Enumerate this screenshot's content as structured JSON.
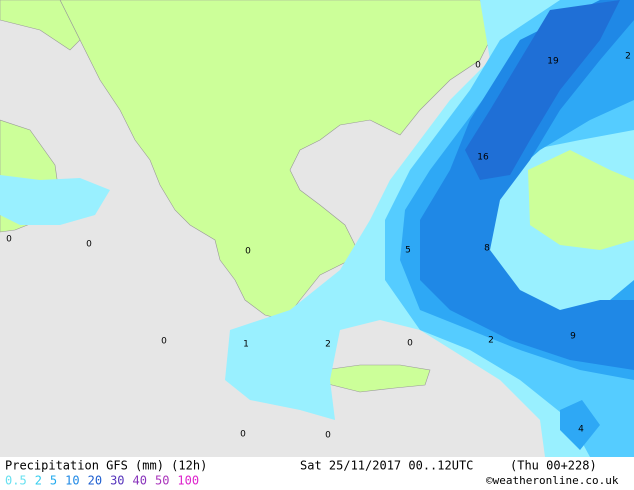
{
  "header": {
    "title": "Precipitation GFS (mm) (12h)",
    "date": "Sat 25/11/2017 00..12UTC",
    "run": "(Thu 00+228)"
  },
  "legend": [
    {
      "label": "0.5",
      "color": "#66e0f0"
    },
    {
      "label": "2",
      "color": "#33ccee"
    },
    {
      "label": "5",
      "color": "#22aaee"
    },
    {
      "label": "10",
      "color": "#1e88e5"
    },
    {
      "label": "20",
      "color": "#1e5fd0"
    },
    {
      "label": "30",
      "color": "#5533bb"
    },
    {
      "label": "40",
      "color": "#8833bb"
    },
    {
      "label": "50",
      "color": "#aa33bb"
    },
    {
      "label": "100",
      "color": "#dd22cc"
    }
  ],
  "credit": "©weatheronline.co.uk",
  "map_labels": [
    "0",
    "19",
    "2",
    "16",
    "0",
    "0",
    "0",
    "5",
    "8",
    "0",
    "1",
    "2",
    "0",
    "2",
    "9",
    "4",
    "0",
    "0"
  ]
}
